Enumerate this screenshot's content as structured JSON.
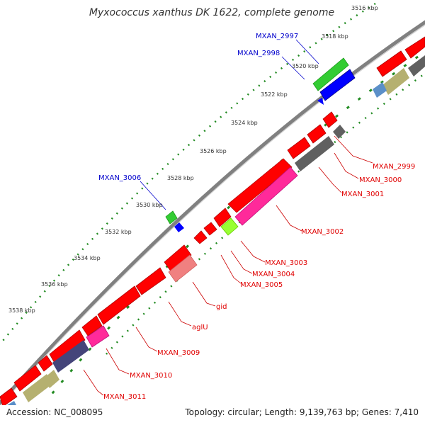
{
  "title": "Myxococcus xanthus DK 1622, complete genome",
  "footer": {
    "accession": "Accession: NC_008095",
    "summary": "Topology: circular; Length: 9,139,763 bp; Genes: 7,410"
  },
  "ticks": [
    {
      "label": "3516 kbp",
      "kbp": 3516
    },
    {
      "label": "3518 kbp",
      "kbp": 3518
    },
    {
      "label": "3520 kbp",
      "kbp": 3520
    },
    {
      "label": "3522 kbp",
      "kbp": 3522
    },
    {
      "label": "3524 kbp",
      "kbp": 3524
    },
    {
      "label": "3526 kbp",
      "kbp": 3526
    },
    {
      "label": "3528 kbp",
      "kbp": 3528
    },
    {
      "label": "3530 kbp",
      "kbp": 3530
    },
    {
      "label": "3532 kbp",
      "kbp": 3532
    },
    {
      "label": "3534 kbp",
      "kbp": 3534
    },
    {
      "label": "3536 kbp",
      "kbp": 3536
    },
    {
      "label": "3538 kbp",
      "kbp": 3538
    }
  ],
  "colors": {
    "backbone": "#808080",
    "cds": "#ff0000",
    "rna_feature": "#0000ff",
    "misc_feature": "#33cc33",
    "dotted_ring": "#228b22",
    "label_external": "#0000cc",
    "label_gene": "#e00000"
  },
  "gene_labels": [
    {
      "label": "MXAN_2997",
      "color": "#0000cc"
    },
    {
      "label": "MXAN_2998",
      "color": "#0000cc"
    },
    {
      "label": "MXAN_3006",
      "color": "#0000cc"
    },
    {
      "label": "MXAN_2999",
      "color": "#e00000"
    },
    {
      "label": "MXAN_3000",
      "color": "#e00000"
    },
    {
      "label": "MXAN_3001",
      "color": "#e00000"
    },
    {
      "label": "MXAN_3002",
      "color": "#e00000"
    },
    {
      "label": "MXAN_3003",
      "color": "#e00000"
    },
    {
      "label": "MXAN_3004",
      "color": "#e00000"
    },
    {
      "label": "MXAN_3005",
      "color": "#e00000"
    },
    {
      "label": "gid",
      "color": "#e00000"
    },
    {
      "label": "aglU",
      "color": "#e00000"
    },
    {
      "label": "MXAN_3009",
      "color": "#e00000"
    },
    {
      "label": "MXAN_3010",
      "color": "#e00000"
    },
    {
      "label": "MXAN_3011",
      "color": "#e00000"
    }
  ]
}
